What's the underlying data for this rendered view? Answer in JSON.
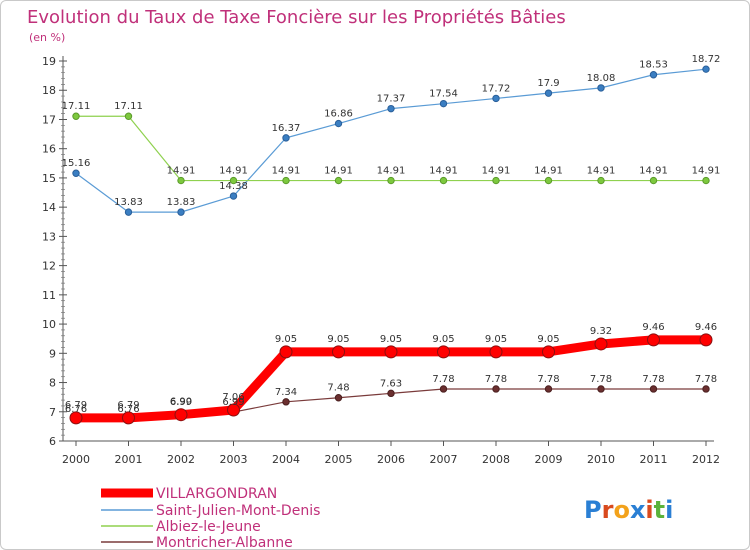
{
  "chart_data": {
    "type": "line",
    "title": "Evolution du Taux de Taxe Foncière sur les Propriétés Bâties",
    "subtitle": "(en %)",
    "x": [
      "2000",
      "2001",
      "2002",
      "2003",
      "2004",
      "2005",
      "2006",
      "2007",
      "2008",
      "2009",
      "2010",
      "2011",
      "2012"
    ],
    "ylim": [
      6,
      19
    ],
    "yticks": [
      6,
      7,
      8,
      9,
      10,
      11,
      12,
      13,
      14,
      15,
      16,
      17,
      18,
      19
    ],
    "grid": false,
    "legend_position": "bottom-left",
    "series": [
      {
        "name": "VILLARGONDRAN",
        "color": "#ff0000",
        "values": [
          6.79,
          6.79,
          6.9,
          7.06,
          9.05,
          9.05,
          9.05,
          9.05,
          9.05,
          9.05,
          9.32,
          9.46,
          9.46
        ],
        "labels": [
          "6.79",
          "6.79",
          "6.90",
          "7.06",
          "9.05",
          "9.05",
          "9.05",
          "9.05",
          "9.05",
          "9.05",
          "9.32",
          "9.46",
          "9.46"
        ]
      },
      {
        "name": "Saint-Julien-Mont-Denis",
        "color": "#5a9bd5",
        "values": [
          15.16,
          13.83,
          13.83,
          14.38,
          16.37,
          16.86,
          17.37,
          17.54,
          17.72,
          17.9,
          18.08,
          18.53,
          18.72
        ],
        "labels": [
          "15.16",
          "13.83",
          "13.83",
          "14.38",
          "16.37",
          "16.86",
          "17.37",
          "17.54",
          "17.72",
          "17.9",
          "18.08",
          "18.53",
          "18.72"
        ]
      },
      {
        "name": "Albiez-le-Jeune",
        "color": "#8fd14f",
        "values": [
          17.11,
          17.11,
          14.91,
          14.91,
          14.91,
          14.91,
          14.91,
          14.91,
          14.91,
          14.91,
          14.91,
          14.91,
          14.91
        ],
        "labels": [
          "17.11",
          "17.11",
          "14.91",
          "14.91",
          "14.91",
          "14.91",
          "14.91",
          "14.91",
          "14.91",
          "14.91",
          "14.91",
          "14.91",
          "14.91"
        ]
      },
      {
        "name": "Montricher-Albanne",
        "color": "#7a3b3b",
        "values": [
          6.76,
          6.76,
          6.99,
          6.99,
          7.34,
          7.48,
          7.63,
          7.78,
          7.78,
          7.78,
          7.78,
          7.78,
          7.78
        ],
        "labels": [
          "6.76",
          "6.76",
          "6.99",
          "6.99",
          "7.34",
          "7.48",
          "7.63",
          "7.78",
          "7.78",
          "7.78",
          "7.78",
          "7.78",
          "7.78"
        ]
      }
    ]
  },
  "brand": {
    "text": "Proxiti",
    "letters": [
      "P",
      "r",
      "o",
      "x",
      "i",
      "t",
      "i"
    ],
    "colors": [
      "#2a7fd4",
      "#d94a1e",
      "#f3a21b",
      "#2a7fd4",
      "#d94a1e",
      "#5bb33b",
      "#2a7fd4"
    ]
  }
}
